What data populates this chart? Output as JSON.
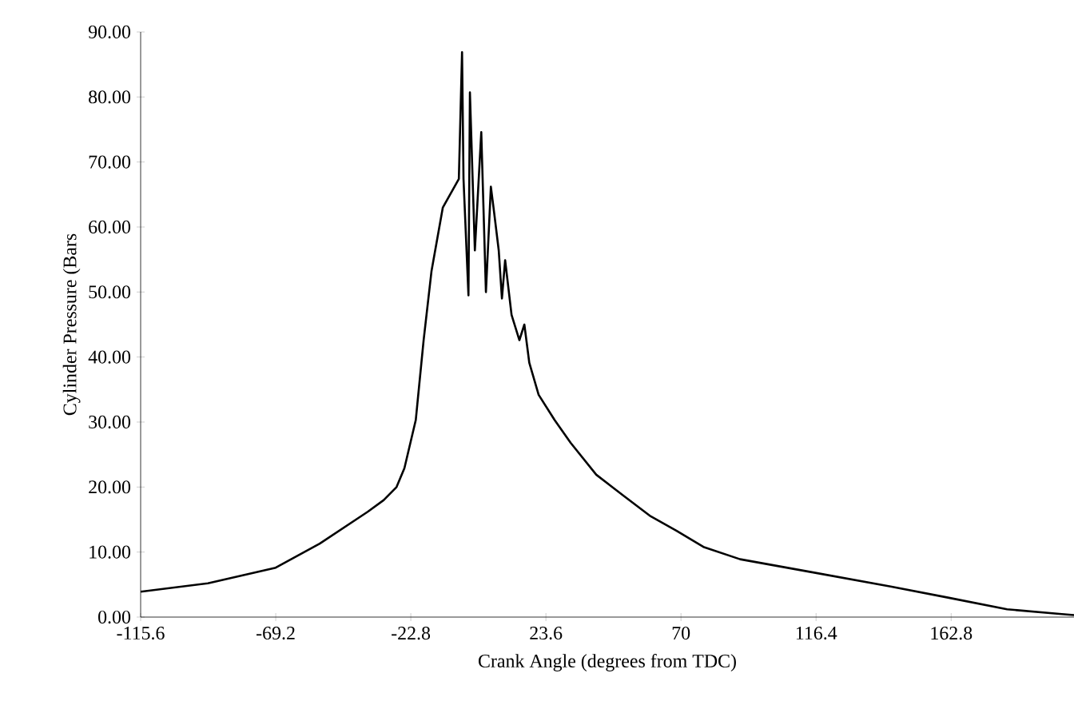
{
  "chart_data": {
    "type": "line",
    "xlabel": "Crank Angle (degrees from TDC)",
    "ylabel": "Cylinder Pressure (Bars",
    "xlim": [
      -115.6,
      205
    ],
    "ylim": [
      0,
      90
    ],
    "xticks": [
      -115.6,
      -69.2,
      -22.8,
      23.6,
      70,
      116.4,
      162.8
    ],
    "yticks": [
      {
        "value": 0,
        "label": "0.00"
      },
      {
        "value": 10,
        "label": "10.00"
      },
      {
        "value": 20,
        "label": "20.00"
      },
      {
        "value": 30,
        "label": "30.00"
      },
      {
        "value": 40,
        "label": "40.00"
      },
      {
        "value": 50,
        "label": "50.00"
      },
      {
        "value": 60,
        "label": "60.00"
      },
      {
        "value": 70,
        "label": "70.00"
      },
      {
        "value": 80,
        "label": "80.00"
      },
      {
        "value": 90,
        "label": "90.00"
      }
    ],
    "grid": false,
    "legend": false,
    "marker": "none",
    "line_style": "solid",
    "series": [
      {
        "color": "#000000",
        "x": [
          -115.6,
          -92.5,
          -69.2,
          -54.1,
          -37.6,
          -32.1,
          -27.7,
          -25,
          -21.1,
          -18.4,
          -15.7,
          -11.8,
          -6.3,
          -5.2,
          -4.7,
          -3,
          -2.5,
          -0.8,
          1.4,
          3,
          4.7,
          5.8,
          7.4,
          8.5,
          9.6,
          11.8,
          14.5,
          16.2,
          17.9,
          21.1,
          26.6,
          32.1,
          40.9,
          50.2,
          59.6,
          68.4,
          77.7,
          90.3,
          115,
          142,
          161.7,
          182,
          200,
          205
        ],
        "values": [
          3.9,
          5.2,
          7.6,
          11.3,
          16.2,
          18,
          20,
          22.9,
          30.3,
          42.6,
          53.2,
          63,
          67.4,
          86.9,
          67.4,
          49.5,
          80.7,
          56.4,
          74.6,
          50,
          66.2,
          62.3,
          56.4,
          49,
          54.9,
          46.5,
          42.6,
          45,
          39.1,
          34.2,
          30.3,
          26.8,
          21.9,
          18.7,
          15.5,
          13.3,
          10.8,
          8.9,
          6.9,
          4.7,
          3,
          1.2,
          0.5,
          0.3
        ]
      }
    ]
  }
}
